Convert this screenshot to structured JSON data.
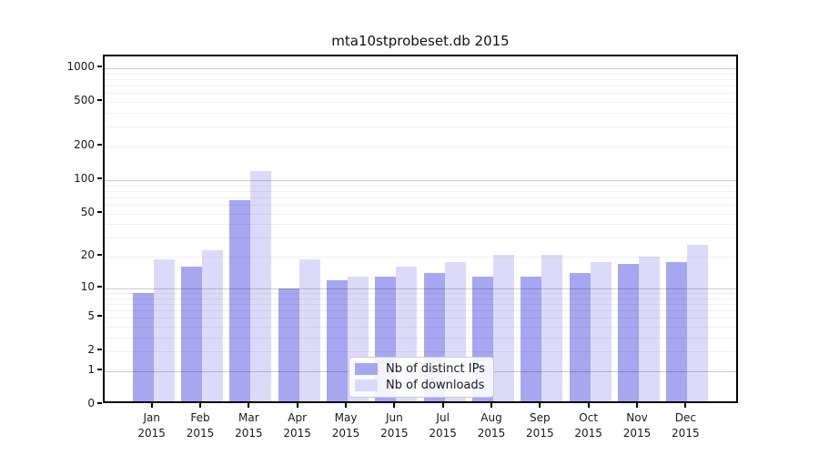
{
  "title": "mta10stprobeset.db 2015",
  "chart_data": {
    "type": "bar",
    "title": "mta10stprobeset.db 2015",
    "xlabel": "",
    "ylabel": "",
    "yscale": "log1p",
    "ylim": [
      0,
      1300
    ],
    "grid": "on",
    "legend_position": "lower-center",
    "categories": [
      "Jan",
      "Feb",
      "Mar",
      "Apr",
      "May",
      "Jun",
      "Jul",
      "Aug",
      "Sep",
      "Oct",
      "Nov",
      "Dec"
    ],
    "year_label": "2015",
    "yticks": [
      1000,
      500,
      200,
      100,
      50,
      20,
      10,
      5,
      2,
      1,
      0
    ],
    "series": [
      {
        "name": "Nb of distinct IPs",
        "color": "#a6a6f1",
        "values": [
          9,
          16,
          66,
          10,
          12,
          13,
          14,
          13,
          13,
          14,
          17,
          18
        ]
      },
      {
        "name": "Nb of downloads",
        "color": "#dbdbf9",
        "values": [
          19,
          23,
          120,
          19,
          13,
          16,
          18,
          21,
          21,
          18,
          20,
          26
        ]
      }
    ],
    "colors": {
      "major_grid": "rgba(0,0,0,0.20)",
      "minor_grid": "rgba(0,0,0,0.06)",
      "spine": "#000000",
      "text": "#1a1a1a"
    }
  }
}
